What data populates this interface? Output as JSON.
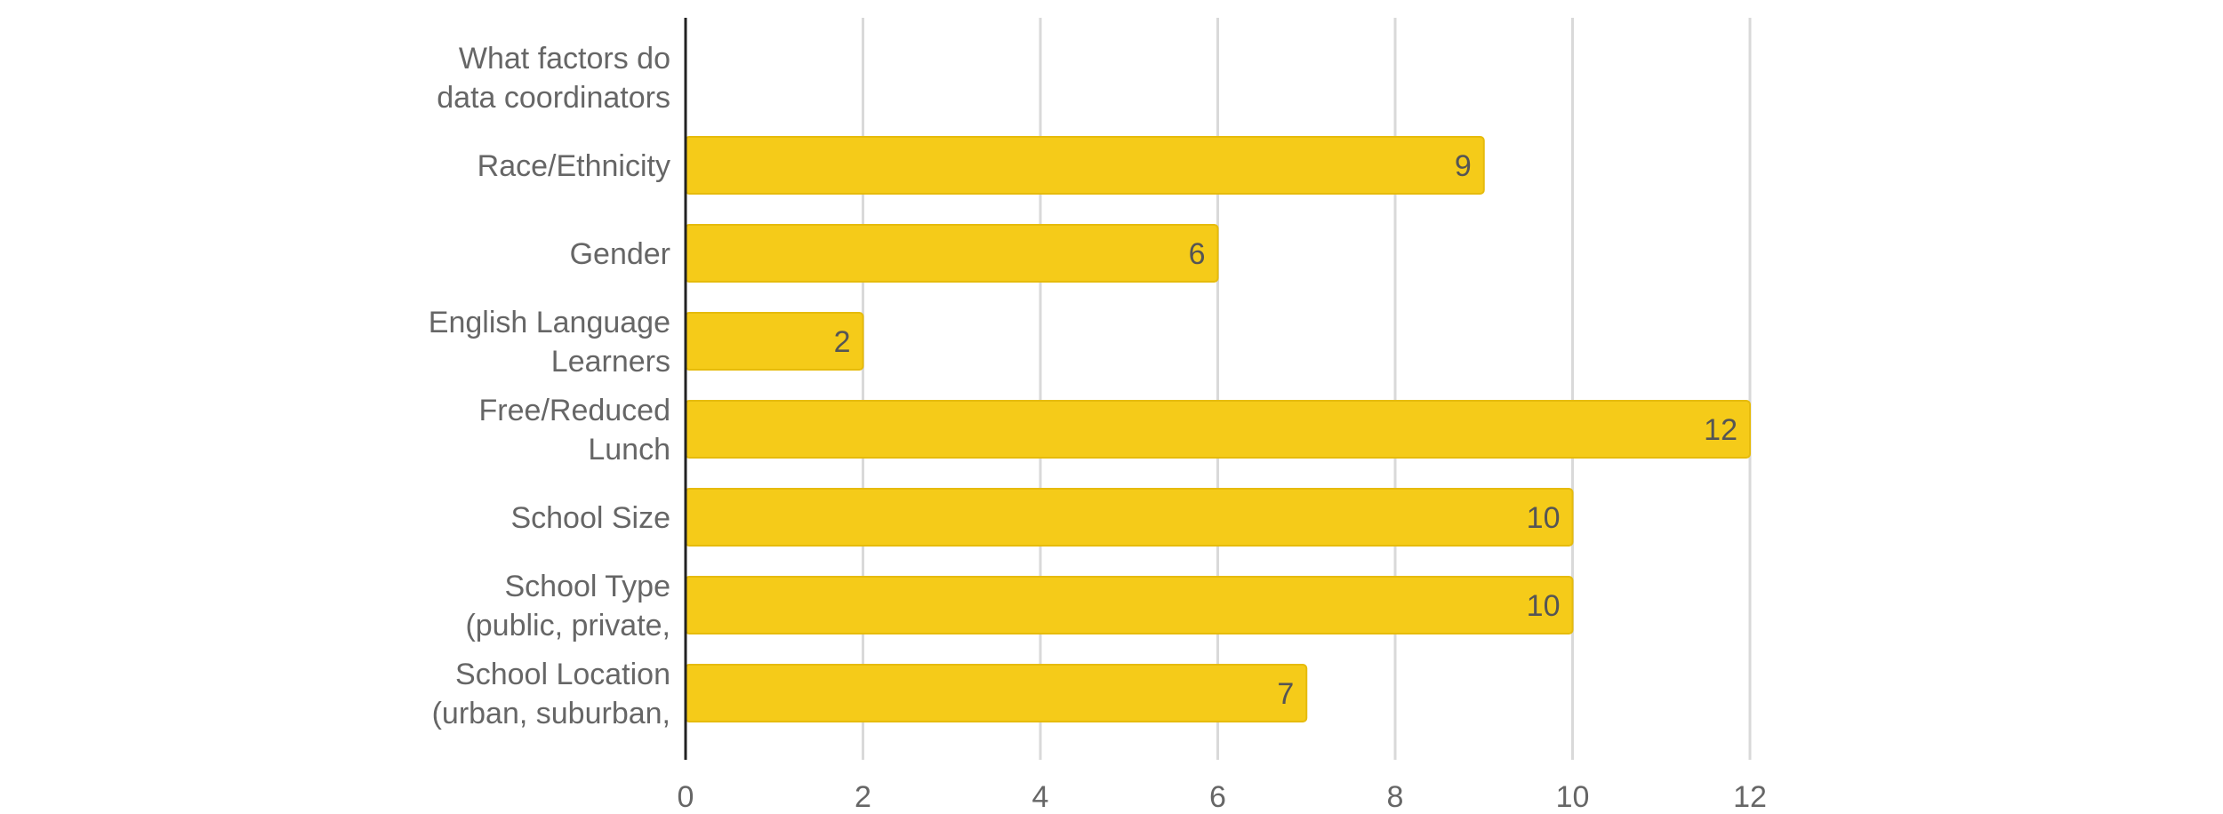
{
  "chart_data": {
    "type": "bar",
    "orientation": "horizontal",
    "categories": [
      [
        "What factors do",
        "data coordinators"
      ],
      [
        "Race/Ethnicity"
      ],
      [
        "Gender"
      ],
      [
        "English Language",
        "Learners"
      ],
      [
        "Free/Reduced",
        "Lunch"
      ],
      [
        "School Size"
      ],
      [
        "School Type",
        "(public, private,"
      ],
      [
        "School Location",
        "(urban, suburban,"
      ]
    ],
    "values": [
      null,
      9,
      6,
      2,
      12,
      10,
      10,
      7
    ],
    "value_labels": [
      "",
      "9",
      "6",
      "2",
      "12",
      "10",
      "10",
      "7"
    ],
    "xlim": [
      0,
      12
    ],
    "xticks": [
      0,
      2,
      4,
      6,
      8,
      10,
      12
    ],
    "tick_labels": [
      "0",
      "2",
      "4",
      "6",
      "8",
      "10",
      "12"
    ],
    "grid": "vertical",
    "legend": "none",
    "colors": {
      "bar": "#f5cb19",
      "bar_edge": "#e6bb0c",
      "grid": "#d9d9d9",
      "axis": "#222222",
      "text": "#666666",
      "value_text": "#555555"
    }
  }
}
